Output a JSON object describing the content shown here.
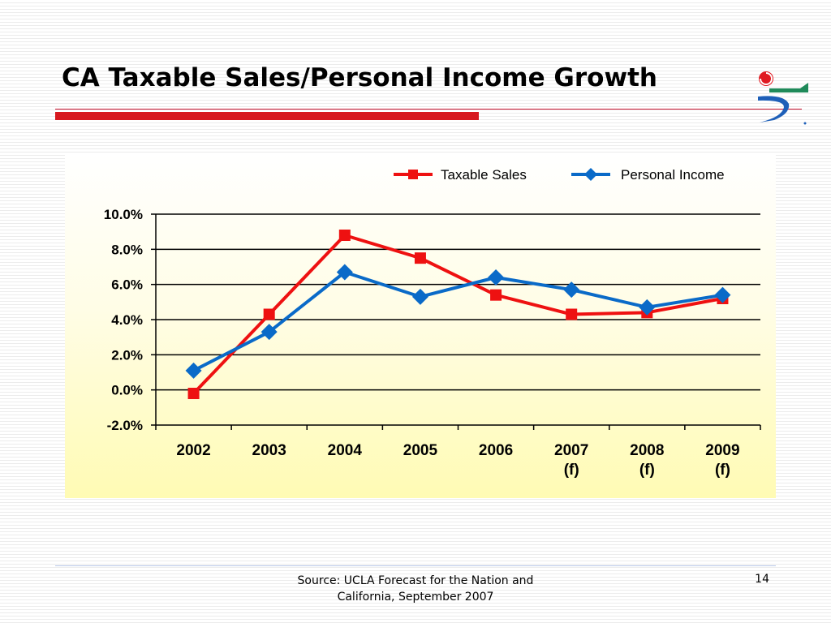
{
  "slide": {
    "title": "CA Taxable Sales/Personal Income Growth",
    "source_line1": "Source: UCLA Forecast for the Nation and",
    "source_line2": "California, September 2007",
    "page_number": "14"
  },
  "logo": {
    "icon": "ucla-forecast-logo-icon"
  },
  "colors": {
    "title_rule": "#d7191f",
    "taxable_sales": "#ee1111",
    "personal_income": "#0a6ac8",
    "grid": "#000000"
  },
  "chart_data": {
    "type": "line",
    "title": "",
    "xlabel": "",
    "ylabel": "",
    "categories": [
      [
        "2002"
      ],
      [
        "2003"
      ],
      [
        "2004"
      ],
      [
        "2005"
      ],
      [
        "2006"
      ],
      [
        "2007",
        "(f)"
      ],
      [
        "2008",
        "(f)"
      ],
      [
        "2009",
        "(f)"
      ]
    ],
    "series": [
      {
        "name": "Taxable Sales",
        "marker": "square",
        "color": "#ee1111",
        "values": [
          -0.2,
          4.3,
          8.8,
          7.5,
          5.4,
          4.3,
          4.4,
          5.2
        ]
      },
      {
        "name": "Personal Income",
        "marker": "diamond",
        "color": "#0a6ac8",
        "values": [
          1.1,
          3.3,
          6.7,
          5.3,
          6.4,
          5.7,
          4.7,
          5.4
        ]
      }
    ],
    "ylim": [
      -2.0,
      10.0
    ],
    "yticks": [
      "10.0%",
      "8.0%",
      "6.0%",
      "4.0%",
      "2.0%",
      "0.0%",
      "-2.0%"
    ],
    "ytick_values": [
      10,
      8,
      6,
      4,
      2,
      0,
      -2
    ],
    "grid": true,
    "legend_position": "top-right"
  }
}
